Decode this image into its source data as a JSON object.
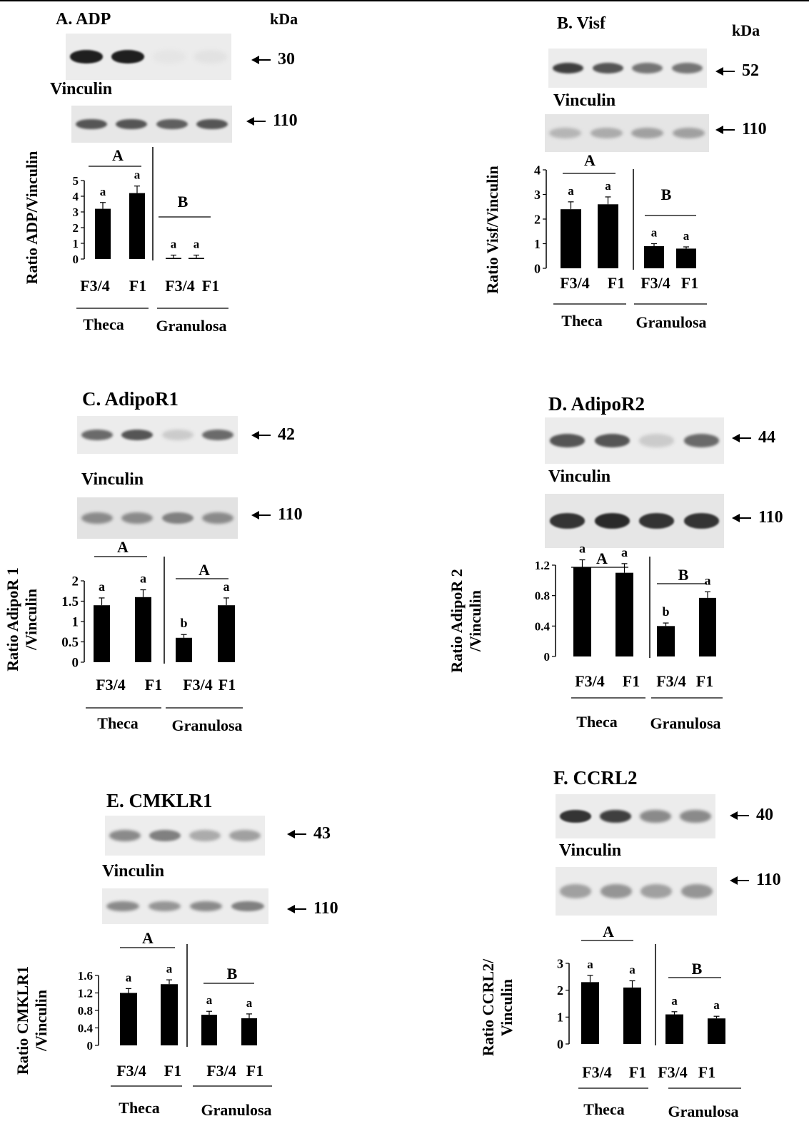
{
  "units_label": "kDa",
  "vinculin_label": "Vinculin",
  "panels": [
    {
      "id": "A",
      "title": "A. ADP",
      "protein_kda": "30",
      "vinculin_kda": "110",
      "blot_band_intensity": [
        0.95,
        0.95,
        0.03,
        0.04
      ],
      "vinculin_band_intensity": [
        0.7,
        0.7,
        0.65,
        0.7
      ]
    },
    {
      "id": "B",
      "title": "B. Visf",
      "protein_kda": "52",
      "vinculin_kda": "110",
      "blot_band_intensity": [
        0.8,
        0.7,
        0.55,
        0.55
      ],
      "vinculin_band_intensity": [
        0.25,
        0.3,
        0.35,
        0.35
      ]
    },
    {
      "id": "C",
      "title": "C. AdipoR1",
      "protein_kda": "42",
      "vinculin_kda": "110",
      "blot_band_intensity": [
        0.6,
        0.7,
        0.15,
        0.6
      ],
      "vinculin_band_intensity": [
        0.45,
        0.45,
        0.5,
        0.45
      ]
    },
    {
      "id": "D",
      "title": "D. AdipoR2",
      "protein_kda": "44",
      "vinculin_kda": "110",
      "blot_band_intensity": [
        0.7,
        0.7,
        0.15,
        0.6
      ],
      "vinculin_band_intensity": [
        0.85,
        0.9,
        0.85,
        0.85
      ]
    },
    {
      "id": "E",
      "title": "E. CMKLR1",
      "protein_kda": "43",
      "vinculin_kda": "110",
      "blot_band_intensity": [
        0.45,
        0.5,
        0.3,
        0.35
      ],
      "vinculin_band_intensity": [
        0.45,
        0.4,
        0.45,
        0.5
      ]
    },
    {
      "id": "F",
      "title": "F. CCRL2",
      "protein_kda": "40",
      "vinculin_kda": "110",
      "blot_band_intensity": [
        0.85,
        0.8,
        0.45,
        0.45
      ],
      "vinculin_band_intensity": [
        0.35,
        0.4,
        0.35,
        0.4
      ]
    }
  ],
  "chart_data": [
    {
      "panel": "A",
      "type": "bar",
      "ylabel": [
        "Ratio ADP/Vinculin"
      ],
      "ylim": [
        0,
        5
      ],
      "yticks": [
        "0",
        "1",
        "2",
        "3",
        "4",
        "5"
      ],
      "categories": [
        "F3/4",
        "F1",
        "F3/4",
        "F1"
      ],
      "values": [
        3.2,
        4.2,
        0.05,
        0.05
      ],
      "errors": [
        0.4,
        0.45,
        0.2,
        0.2
      ],
      "bar_letters": [
        "a",
        "a",
        "a",
        "a"
      ],
      "groups": [
        {
          "name": "Theca",
          "letter": "A"
        },
        {
          "name": "Granulosa",
          "letter": "B"
        }
      ]
    },
    {
      "panel": "B",
      "type": "bar",
      "ylabel": [
        "Ratio Visf/Vinculin"
      ],
      "ylim": [
        0,
        4
      ],
      "yticks": [
        "0",
        "1",
        "2",
        "3",
        "4"
      ],
      "categories": [
        "F3/4",
        "F1",
        "F3/4",
        "F1"
      ],
      "values": [
        2.4,
        2.6,
        0.9,
        0.8
      ],
      "errors": [
        0.3,
        0.3,
        0.1,
        0.07
      ],
      "bar_letters": [
        "a",
        "a",
        "a",
        "a"
      ],
      "groups": [
        {
          "name": "Theca",
          "letter": "A"
        },
        {
          "name": "Granulosa",
          "letter": "B"
        }
      ]
    },
    {
      "panel": "C",
      "type": "bar",
      "ylabel": [
        "Ratio AdipoR 1",
        "/Vinculin"
      ],
      "ylim": [
        0,
        2
      ],
      "yticks": [
        "0",
        "0.5",
        "1",
        "1.5",
        "2"
      ],
      "categories": [
        "F3/4",
        "F1",
        "F3/4",
        "F1"
      ],
      "values": [
        1.4,
        1.6,
        0.6,
        1.4
      ],
      "errors": [
        0.18,
        0.18,
        0.08,
        0.18
      ],
      "bar_letters": [
        "a",
        "a",
        "b",
        "a"
      ],
      "groups": [
        {
          "name": "Theca",
          "letter": "A"
        },
        {
          "name": "Granulosa",
          "letter": "A"
        }
      ]
    },
    {
      "panel": "D",
      "type": "bar",
      "ylabel": [
        "Ratio AdipoR 2",
        "/Vinculin"
      ],
      "ylim": [
        0,
        1.4
      ],
      "yticks": [
        "0",
        "0.4",
        "0.8",
        "1.2"
      ],
      "categories": [
        "F3/4",
        "F1",
        "F3/4",
        "F1"
      ],
      "values": [
        1.17,
        1.1,
        0.4,
        0.77
      ],
      "errors": [
        0.1,
        0.12,
        0.04,
        0.08
      ],
      "bar_letters": [
        "a",
        "a",
        "b",
        "a"
      ],
      "groups": [
        {
          "name": "Theca",
          "letter": "A"
        },
        {
          "name": "Granulosa",
          "letter": "B"
        }
      ]
    },
    {
      "panel": "E",
      "type": "bar",
      "ylabel": [
        "Ratio CMKLR1",
        "/Vinculin"
      ],
      "ylim": [
        0,
        1.6
      ],
      "yticks": [
        "0",
        "0.4",
        "0.8",
        "1.2",
        "1.6"
      ],
      "categories": [
        "F3/4",
        "F1",
        "F3/4",
        "F1"
      ],
      "values": [
        1.2,
        1.4,
        0.7,
        0.62
      ],
      "errors": [
        0.1,
        0.1,
        0.08,
        0.1
      ],
      "bar_letters": [
        "a",
        "a",
        "a",
        "a"
      ],
      "groups": [
        {
          "name": "Theca",
          "letter": "A"
        },
        {
          "name": "Granulosa",
          "letter": "B"
        }
      ]
    },
    {
      "panel": "F",
      "type": "bar",
      "ylabel": [
        "Ratio CCRL2/",
        "Vinculin"
      ],
      "ylim": [
        0,
        3
      ],
      "yticks": [
        "0",
        "1",
        "2",
        "3"
      ],
      "categories": [
        "F3/4",
        "F1",
        "F3/4",
        "F1"
      ],
      "values": [
        2.3,
        2.1,
        1.1,
        0.95
      ],
      "errors": [
        0.25,
        0.25,
        0.1,
        0.08
      ],
      "bar_letters": [
        "a",
        "a",
        "a",
        "a"
      ],
      "groups": [
        {
          "name": "Theca",
          "letter": "A"
        },
        {
          "name": "Granulosa",
          "letter": "B"
        }
      ]
    }
  ]
}
